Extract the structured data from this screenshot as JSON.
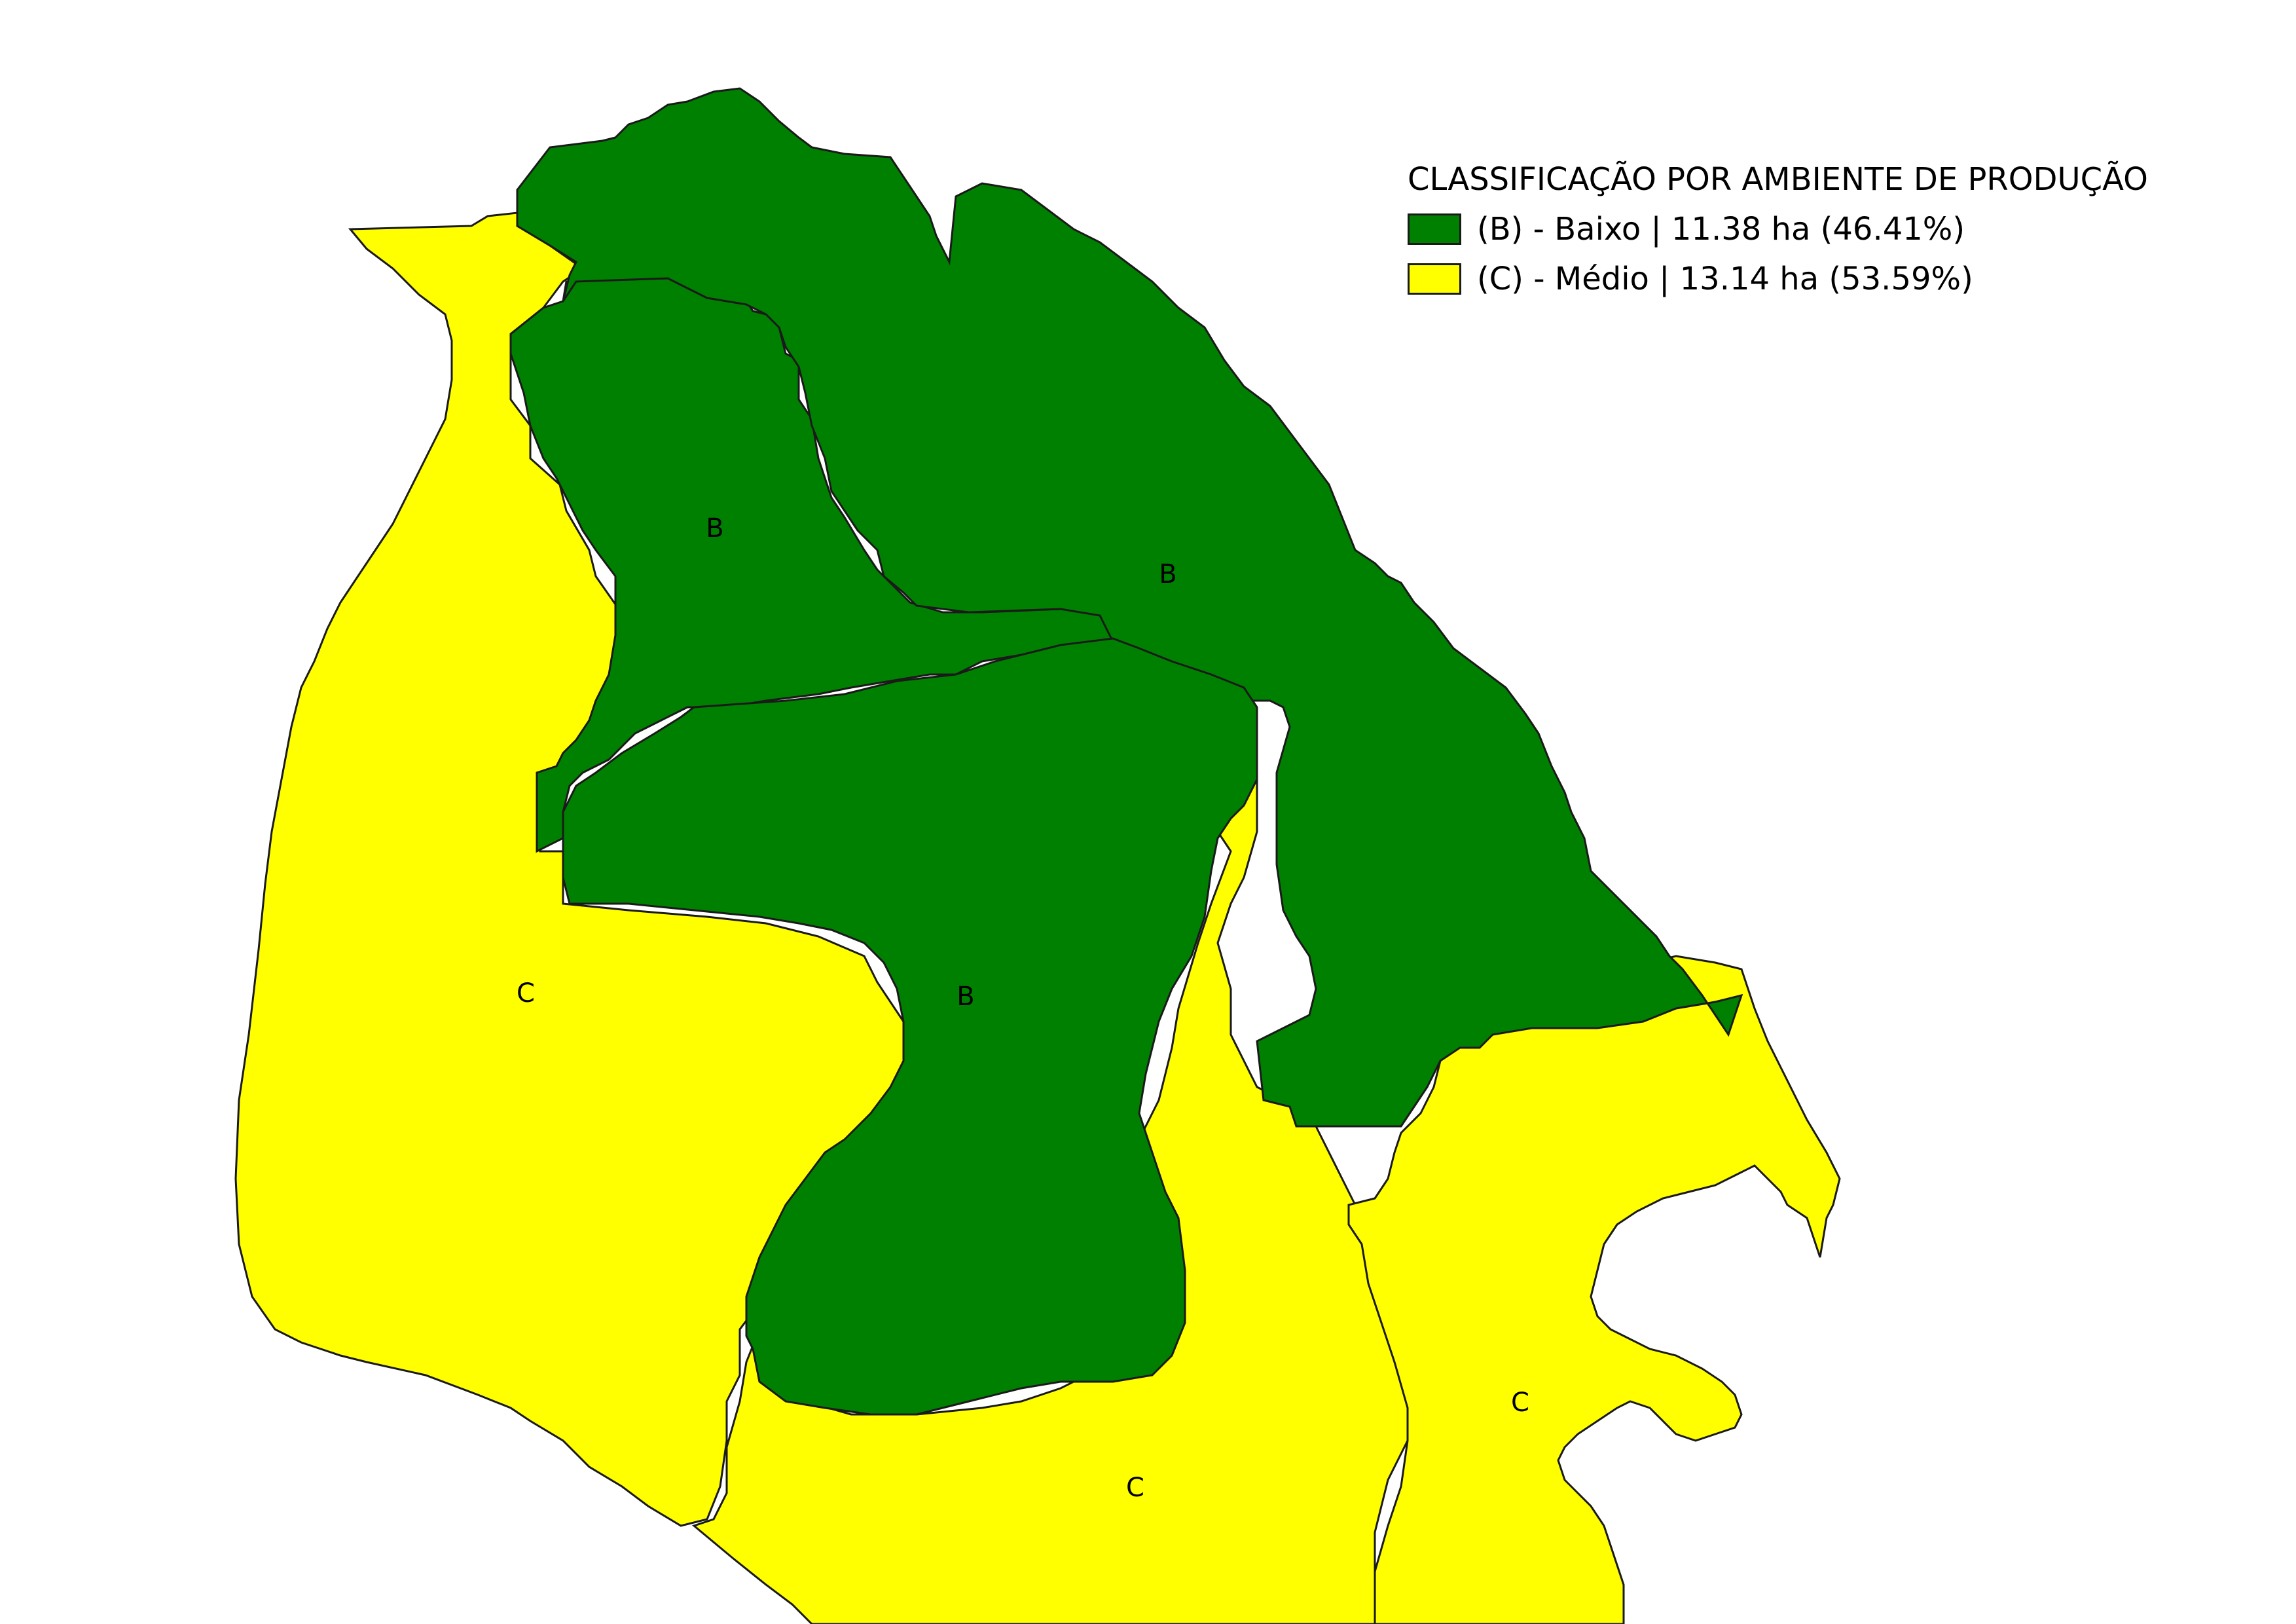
{
  "legend": {
    "title": "CLASSIFICAÇÃO POR AMBIENTE DE PRODUÇÃO",
    "items": [
      {
        "label": "(B) - Baixo | 11.38 ha (46.41%)",
        "color": "#008000"
      },
      {
        "label": "(C) - Médio | 13.14 ha (53.59%)",
        "color": "#ffff00"
      }
    ]
  },
  "zones": [
    {
      "class": "B",
      "color": "#008000"
    },
    {
      "class": "B",
      "color": "#008000"
    },
    {
      "class": "B",
      "color": "#008000"
    },
    {
      "class": "C",
      "color": "#ffff00"
    },
    {
      "class": "C",
      "color": "#ffff00"
    },
    {
      "class": "C",
      "color": "#ffff00"
    }
  ]
}
